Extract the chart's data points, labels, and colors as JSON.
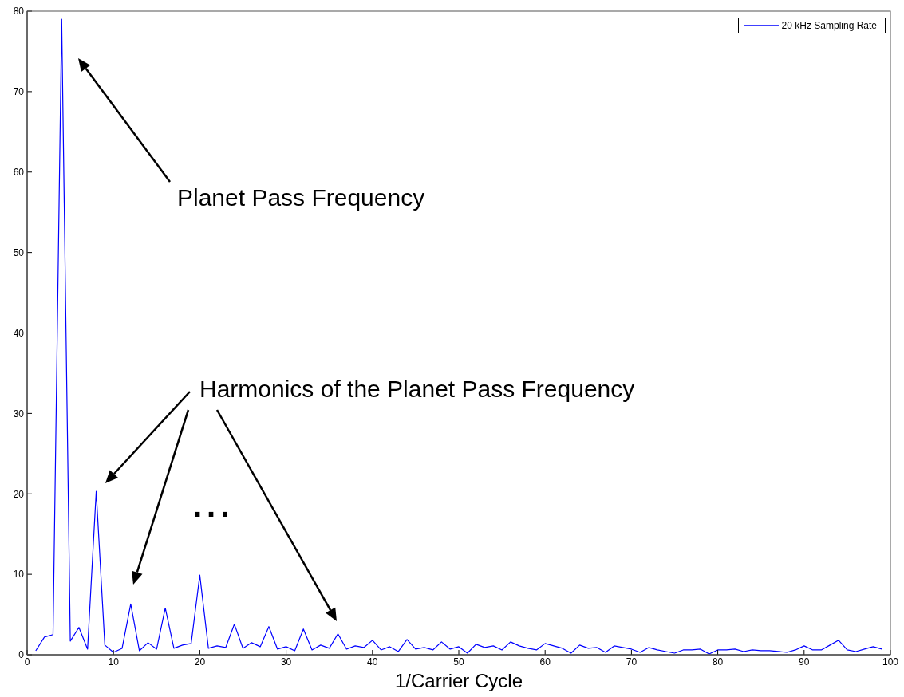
{
  "chart_data": {
    "type": "line",
    "xlabel": "1/Carrier Cycle",
    "x": [
      1,
      2,
      3,
      4,
      5,
      6,
      7,
      8,
      9,
      10,
      11,
      12,
      13,
      14,
      15,
      16,
      17,
      18,
      19,
      20,
      21,
      22,
      23,
      24,
      25,
      26,
      27,
      28,
      29,
      30,
      31,
      32,
      33,
      34,
      35,
      36,
      37,
      38,
      39,
      40,
      41,
      42,
      43,
      44,
      45,
      46,
      47,
      48,
      49,
      50,
      51,
      52,
      53,
      54,
      55,
      56,
      57,
      58,
      59,
      60,
      61,
      62,
      63,
      64,
      65,
      66,
      67,
      68,
      69,
      70,
      71,
      72,
      73,
      74,
      75,
      76,
      77,
      78,
      79,
      80,
      81,
      82,
      83,
      84,
      85,
      86,
      87,
      88,
      89,
      90,
      91,
      92,
      93,
      94,
      95,
      96,
      97,
      98,
      99
    ],
    "series": [
      {
        "name": "20 kHz Sampling Rate",
        "color": "#0000ff",
        "values": [
          0.5,
          2.2,
          2.5,
          79,
          1.7,
          3.4,
          0.7,
          20.3,
          1.2,
          0.3,
          0.8,
          6.3,
          0.5,
          1.5,
          0.7,
          5.8,
          0.8,
          1.2,
          1.4,
          9.9,
          0.8,
          1.1,
          0.9,
          3.8,
          0.8,
          1.5,
          1.0,
          3.5,
          0.7,
          1.0,
          0.5,
          3.2,
          0.6,
          1.2,
          0.8,
          2.6,
          0.7,
          1.1,
          0.9,
          1.8,
          0.6,
          1.0,
          0.4,
          1.9,
          0.7,
          0.9,
          0.6,
          1.6,
          0.7,
          1.0,
          0.2,
          1.3,
          0.9,
          1.1,
          0.6,
          1.6,
          1.1,
          0.8,
          0.6,
          1.4,
          1.1,
          0.8,
          0.2,
          1.2,
          0.8,
          0.9,
          0.3,
          1.1,
          0.9,
          0.7,
          0.3,
          0.9,
          0.6,
          0.4,
          0.2,
          0.6,
          0.6,
          0.7,
          0.1,
          0.6,
          0.6,
          0.7,
          0.4,
          0.6,
          0.5,
          0.5,
          0.4,
          0.3,
          0.6,
          1.1,
          0.6,
          0.6,
          1.2,
          1.8,
          0.6,
          0.4,
          0.7,
          1.0,
          0.7
        ]
      }
    ],
    "xlim": [
      0,
      100
    ],
    "xticks": [
      0,
      10,
      20,
      30,
      40,
      50,
      60,
      70,
      80,
      90,
      100
    ],
    "ylim": [
      0,
      80
    ],
    "yticks": [
      0,
      10,
      20,
      30,
      40,
      50,
      60,
      70,
      80
    ],
    "grid": false,
    "legend": "top right",
    "marker": "none",
    "line_style": "solid",
    "annotations": [
      "Planet Pass Frequency",
      "Harmonics of the Planet Pass Frequency",
      "..."
    ]
  }
}
